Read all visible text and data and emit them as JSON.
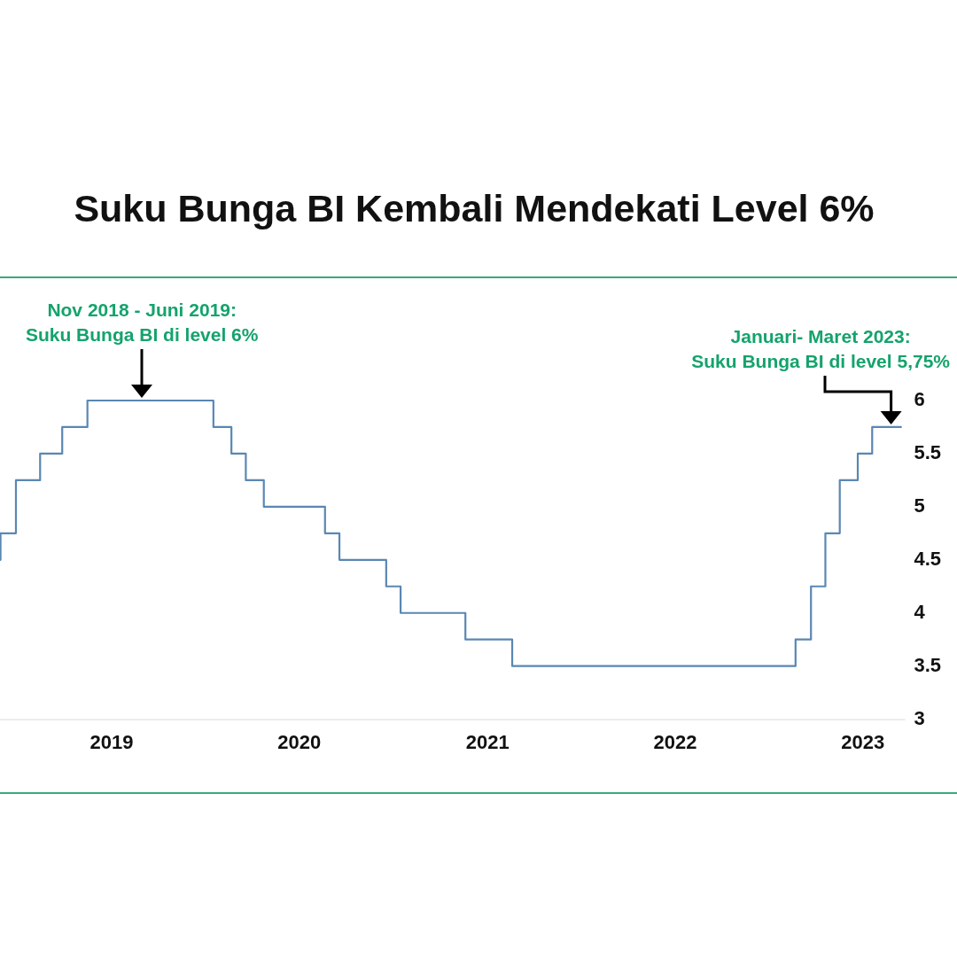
{
  "chart_data": {
    "type": "step",
    "title": "Suku Bunga BI Kembali Mendekati Level 6%",
    "x": [
      "2018-05-29",
      "2018-05-30",
      "2018-06-29",
      "2018-08-15",
      "2018-09-27",
      "2018-11-15",
      "2019-07-18",
      "2019-08-22",
      "2019-09-19",
      "2019-10-24",
      "2020-02-20",
      "2020-03-19",
      "2020-06-18",
      "2020-07-16",
      "2020-11-19",
      "2021-02-18",
      "2022-08-23",
      "2022-09-22",
      "2022-10-20",
      "2022-11-17",
      "2022-12-22",
      "2023-01-19",
      "2023-03-16"
    ],
    "values": [
      4.5,
      4.75,
      5.25,
      5.5,
      5.75,
      6,
      5.75,
      5.5,
      5.25,
      5,
      4.75,
      4.5,
      4.25,
      4,
      3.75,
      3.5,
      3.75,
      4.25,
      4.75,
      5.25,
      5.5,
      5.75,
      5.75
    ],
    "color": "#5a87b3",
    "xlim": [
      "2018-05-29",
      "2023-03-24"
    ],
    "xticks": [
      "2019",
      "2020",
      "2021",
      "2022",
      "2023"
    ],
    "ylim": [
      3,
      6
    ],
    "yticks": [
      3,
      3.5,
      4,
      4.5,
      5,
      5.5,
      6
    ],
    "annotations": [
      {
        "text": "Nov 2018 - Juni 2019:\nSuku Bunga BI di level 6%",
        "x": "2019-03",
        "y": 6
      },
      {
        "text": "Januari- Maret 2023:\nSuku Bunga BI di level 5,75%",
        "x": "2023-02-25",
        "y": 5.75
      }
    ]
  }
}
